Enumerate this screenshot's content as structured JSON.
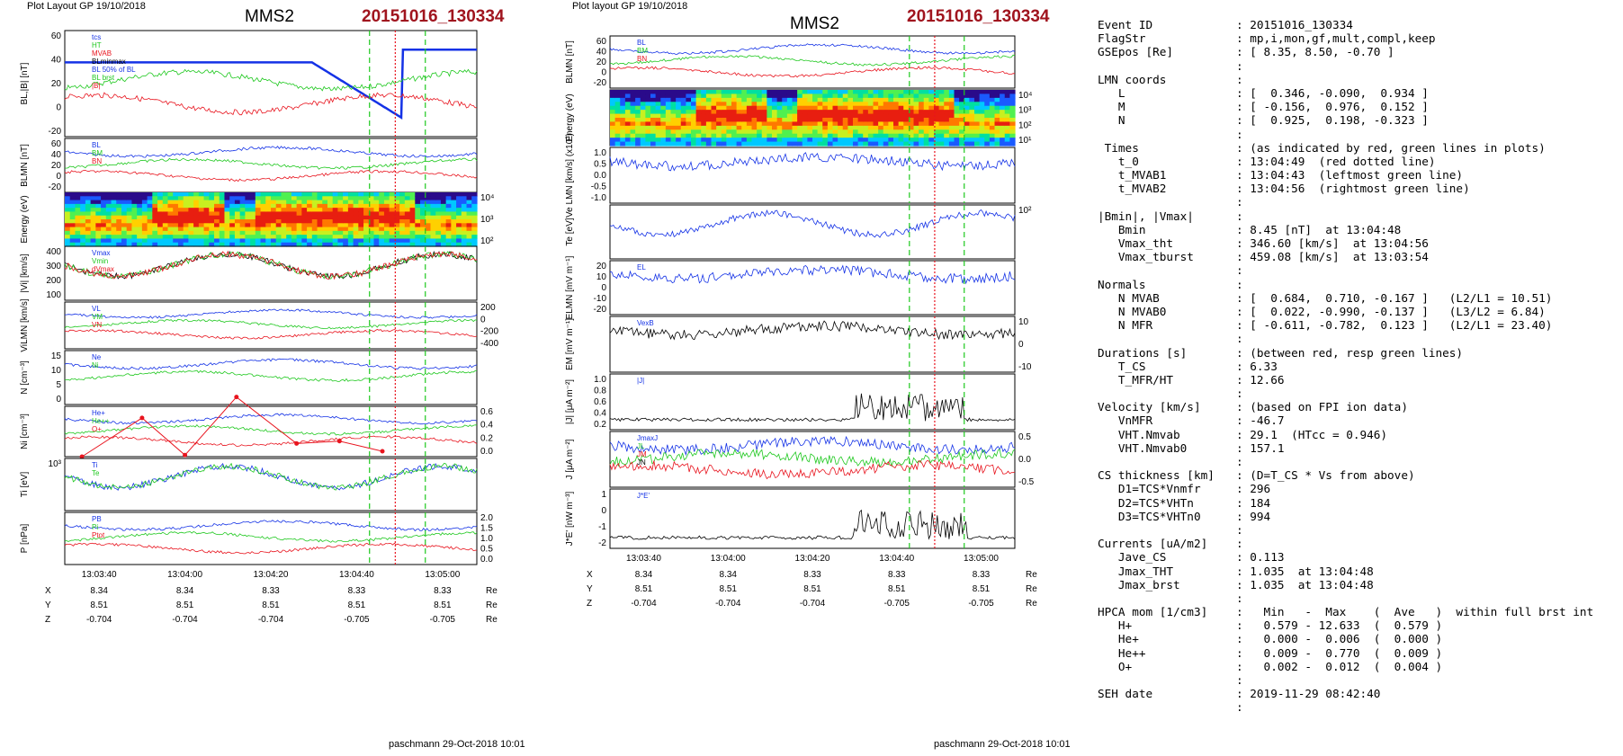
{
  "header": {
    "plot_layout": "Plot Layout GP 19/10/2018",
    "plot_layout_right": "Plot layout GP 19/10/2018",
    "spacecraft": "MMS2",
    "event": "20151016_130334"
  },
  "footer": {
    "credit": "paschmann 29-Oct-2018 10:01"
  },
  "colors": {
    "event": "#a0141e",
    "red": "#e8141e",
    "green": "#1ec81e",
    "blue": "#1432e6",
    "black": "#000000"
  },
  "time_ticks": [
    "13:03:40",
    "13:04:00",
    "13:04:20",
    "13:04:40",
    "13:05:00"
  ],
  "orbit": {
    "rows": [
      {
        "label": "X",
        "values": [
          "8.34",
          "8.34",
          "8.33",
          "8.33",
          "8.33"
        ],
        "unit": "Re"
      },
      {
        "label": "Y",
        "values": [
          "8.51",
          "8.51",
          "8.51",
          "8.51",
          "8.51"
        ],
        "unit": "Re"
      },
      {
        "label": "Z",
        "values": [
          "-0.704",
          "-0.704",
          "-0.704",
          "-0.705",
          "-0.705"
        ],
        "unit": "Re"
      }
    ]
  },
  "chart_data": [
    {
      "type": "line",
      "title": "MMS2 20151016_130334",
      "x_range": [
        "13:03:32",
        "13:05:08"
      ],
      "panels": [
        {
          "id": "L1",
          "ylabel": "BL,|B| [nT]",
          "ylim": [
            -30,
            65
          ],
          "ticks": [
            "60",
            "40",
            "20",
            "0",
            "-20"
          ],
          "legend": [
            "tcs",
            "HT",
            "MVAB",
            "BLminmax",
            "BL 50% of BL",
            "BL brst",
            "|B|"
          ]
        },
        {
          "id": "L2",
          "ylabel": "BLMN [nT]",
          "ylim": [
            -20,
            60
          ],
          "ticks": [
            "60",
            "40",
            "20",
            "0",
            "-20"
          ],
          "legend": [
            "BL",
            "BM",
            "BN"
          ]
        },
        {
          "id": "L3",
          "ylabel": "Energy (eV)",
          "kind": "heatmap",
          "ticks": [
            "10⁴",
            "10³",
            "10²"
          ]
        },
        {
          "id": "L4",
          "ylabel": "|Vi| [km/s]",
          "ylim": [
            0,
            450
          ],
          "ticks": [
            "400",
            "300",
            "200",
            "100"
          ],
          "legend": [
            "Vmax",
            "Vmin",
            "dVmax"
          ]
        },
        {
          "id": "L5",
          "ylabel": "ViLMN [km/s]",
          "ylim": [
            -450,
            250
          ],
          "ticks": [
            "200",
            "0",
            "-200",
            "-400"
          ],
          "legend": [
            "VL",
            "VM",
            "VN"
          ]
        },
        {
          "id": "L6",
          "ylabel": "N [cm⁻³]",
          "ylim": [
            0,
            16
          ],
          "ticks": [
            "15",
            "10",
            "5",
            "0"
          ],
          "legend": [
            "Ne",
            "Ni"
          ]
        },
        {
          "id": "L7",
          "ylabel": "Ni [cm⁻³]",
          "ylim": [
            0,
            0.65
          ],
          "ticks": [
            "0.6",
            "0.4",
            "0.2",
            "0.0"
          ],
          "legend": [
            "He+",
            "He++",
            "O+"
          ],
          "he_pp_points": [
            [
              "13:03:36",
              0.0
            ],
            [
              "13:03:50",
              0.5
            ],
            [
              "13:04:00",
              0.02
            ],
            [
              "13:04:12",
              0.77
            ],
            [
              "13:04:26",
              0.17
            ],
            [
              "13:04:36",
              0.2
            ],
            [
              "13:04:46",
              0.07
            ]
          ]
        },
        {
          "id": "L8",
          "ylabel": "Ti [eV]",
          "kind": "log",
          "ticks": [
            "10³"
          ],
          "legend": [
            "Ti",
            "Te"
          ]
        },
        {
          "id": "L9",
          "ylabel": "P [nPa]",
          "ylim": [
            0,
            2.0
          ],
          "ticks": [
            "2.0",
            "1.5",
            "1.0",
            "0.5",
            "0.0"
          ],
          "legend": [
            "PB",
            "Pi",
            "Ptot"
          ]
        }
      ],
      "lines": {
        "red_dotted": "13:04:49",
        "green_left": "13:04:43",
        "green_right": "13:04:56"
      }
    },
    {
      "type": "line",
      "title": "MMS2 20151016_130334",
      "x_range": [
        "13:03:32",
        "13:05:08"
      ],
      "panels": [
        {
          "id": "R1",
          "ylabel": "BLMN [nT]",
          "ylim": [
            -30,
            65
          ],
          "ticks": [
            "60",
            "40",
            "20",
            "0",
            "-20"
          ],
          "legend": [
            "BL",
            "BM",
            "BN"
          ]
        },
        {
          "id": "R2",
          "ylabel": "Energy (eV)",
          "kind": "heatmap",
          "ticks": [
            "10⁴",
            "10³",
            "10²",
            "10¹"
          ]
        },
        {
          "id": "R3",
          "ylabel": "Ve LMN [km/s] (x10³)",
          "ylim": [
            -1.2,
            1.2
          ],
          "ticks": [
            "1.0",
            "0.5",
            "0.0",
            "-0.5",
            "-1.0"
          ]
        },
        {
          "id": "R4",
          "ylabel": "Te [eV]",
          "kind": "log",
          "ticks": [
            "10²"
          ]
        },
        {
          "id": "R5",
          "ylabel": "ELMN [mV m⁻¹]",
          "ylim": [
            -20,
            22
          ],
          "ticks": [
            "20",
            "10",
            "0",
            "-10",
            "-20"
          ],
          "legend": [
            "EL"
          ]
        },
        {
          "id": "R6",
          "ylabel": "EM [mV m⁻¹]",
          "ylim": [
            -15,
            15
          ],
          "ticks": [
            "10",
            "0",
            "-10"
          ],
          "legend": [
            "VexB"
          ]
        },
        {
          "id": "R7",
          "ylabel": "|J| [μA m⁻²]",
          "ylim": [
            0,
            1.0
          ],
          "ticks": [
            "1.0",
            "0.8",
            "0.6",
            "0.4",
            "0.2"
          ],
          "legend": [
            "|J|"
          ]
        },
        {
          "id": "R8",
          "ylabel": "J [μA m⁻²]",
          "ylim": [
            -0.8,
            0.8
          ],
          "ticks": [
            "0.5",
            "0.0",
            "-0.5"
          ],
          "legend": [
            "JmaxJ",
            "JL",
            "JM",
            "JN"
          ]
        },
        {
          "id": "R9",
          "ylabel": "J*E' [nW m⁻³]",
          "ylim": [
            -2.5,
            1.5
          ],
          "ticks": [
            "1",
            "0",
            "-1",
            "-2"
          ],
          "legend": [
            "J*E'"
          ]
        }
      ],
      "lines": {
        "red_dotted": "13:04:49",
        "green_left": "13:04:43",
        "green_right": "13:04:56"
      }
    }
  ],
  "sidebar": {
    "rows": [
      {
        "k": "Event ID",
        "v": ": 20151016_130334"
      },
      {
        "k": "FlagStr",
        "v": ": mp,i,mon,gf,mult,compl,keep"
      },
      {
        "k": "GSEpos [Re]",
        "v": ": [ 8.35, 8.50, -0.70 ]"
      },
      {
        "k": "",
        "v": ":"
      },
      {
        "k": "LMN coords",
        "v": ":"
      },
      {
        "k": "   L",
        "v": ": [  0.346, -0.090,  0.934 ]"
      },
      {
        "k": "   M",
        "v": ": [ -0.156,  0.976,  0.152 ]"
      },
      {
        "k": "   N",
        "v": ": [  0.925,  0.198, -0.323 ]"
      },
      {
        "k": "",
        "v": ":"
      },
      {
        "k": " Times",
        "v": ": (as indicated by red, green lines in plots)"
      },
      {
        "k": "   t_0",
        "v": ": 13:04:49  (red dotted line)"
      },
      {
        "k": "   t_MVAB1",
        "v": ": 13:04:43  (leftmost green line)"
      },
      {
        "k": "   t_MVAB2",
        "v": ": 13:04:56  (rightmost green line)"
      },
      {
        "k": "",
        "v": ":"
      },
      {
        "k": "|Bmin|, |Vmax|",
        "v": ":"
      },
      {
        "k": "   Bmin",
        "v": ": 8.45 [nT]  at 13:04:48"
      },
      {
        "k": "   Vmax_tht",
        "v": ": 346.60 [km/s]  at 13:04:56"
      },
      {
        "k": "   Vmax_tburst",
        "v": ": 459.08 [km/s]  at 13:03:54"
      },
      {
        "k": "",
        "v": ":"
      },
      {
        "k": "Normals",
        "v": ":"
      },
      {
        "k": "   N MVAB",
        "v": ": [  0.684,  0.710, -0.167 ]   (L2/L1 = 10.51)"
      },
      {
        "k": "   N MVAB0",
        "v": ": [  0.022, -0.990, -0.137 ]   (L3/L2 = 6.84)"
      },
      {
        "k": "   N MFR",
        "v": ": [ -0.611, -0.782,  0.123 ]   (L2/L1 = 23.40)"
      },
      {
        "k": "",
        "v": ":"
      },
      {
        "k": "Durations [s]",
        "v": ": (between red, resp green lines)"
      },
      {
        "k": "   T_CS",
        "v": ": 6.33"
      },
      {
        "k": "   T_MFR/HT",
        "v": ": 12.66"
      },
      {
        "k": "",
        "v": ":"
      },
      {
        "k": "Velocity [km/s]",
        "v": ": (based on FPI ion data)"
      },
      {
        "k": "   VnMFR",
        "v": ": -46.7"
      },
      {
        "k": "   VHT.Nmvab",
        "v": ": 29.1  (HTcc = 0.946)"
      },
      {
        "k": "   VHT.Nmvab0",
        "v": ": 157.1"
      },
      {
        "k": "",
        "v": ":"
      },
      {
        "k": "CS thickness [km]",
        "v": ": (D=T_CS * Vs from above)"
      },
      {
        "k": "   D1=TCS*Vnmfr",
        "v": ": 296"
      },
      {
        "k": "   D2=TCS*VHTn",
        "v": ": 184"
      },
      {
        "k": "   D3=TCS*VHTn0",
        "v": ": 994"
      },
      {
        "k": "",
        "v": ":"
      },
      {
        "k": "Currents [uA/m2]",
        "v": ":"
      },
      {
        "k": "   Jave_CS",
        "v": ": 0.113"
      },
      {
        "k": "   Jmax_THT",
        "v": ": 1.035  at 13:04:48"
      },
      {
        "k": "   Jmax_brst",
        "v": ": 1.035  at 13:04:48"
      },
      {
        "k": "",
        "v": ":"
      },
      {
        "k": "HPCA mom [1/cm3]",
        "v": ":   Min   -  Max    (  Ave   )  within full brst int"
      },
      {
        "k": "   H+",
        "v": ":   0.579 - 12.633  (  0.579 )"
      },
      {
        "k": "   He+",
        "v": ":   0.000 -  0.006  (  0.000 )"
      },
      {
        "k": "   He++",
        "v": ":   0.009 -  0.770  (  0.009 )"
      },
      {
        "k": "   O+",
        "v": ":   0.002 -  0.012  (  0.004 )"
      },
      {
        "k": "",
        "v": ":"
      },
      {
        "k": "SEH date",
        "v": ": 2019-11-29 08:42:40"
      },
      {
        "k": "",
        "v": ":"
      }
    ]
  }
}
